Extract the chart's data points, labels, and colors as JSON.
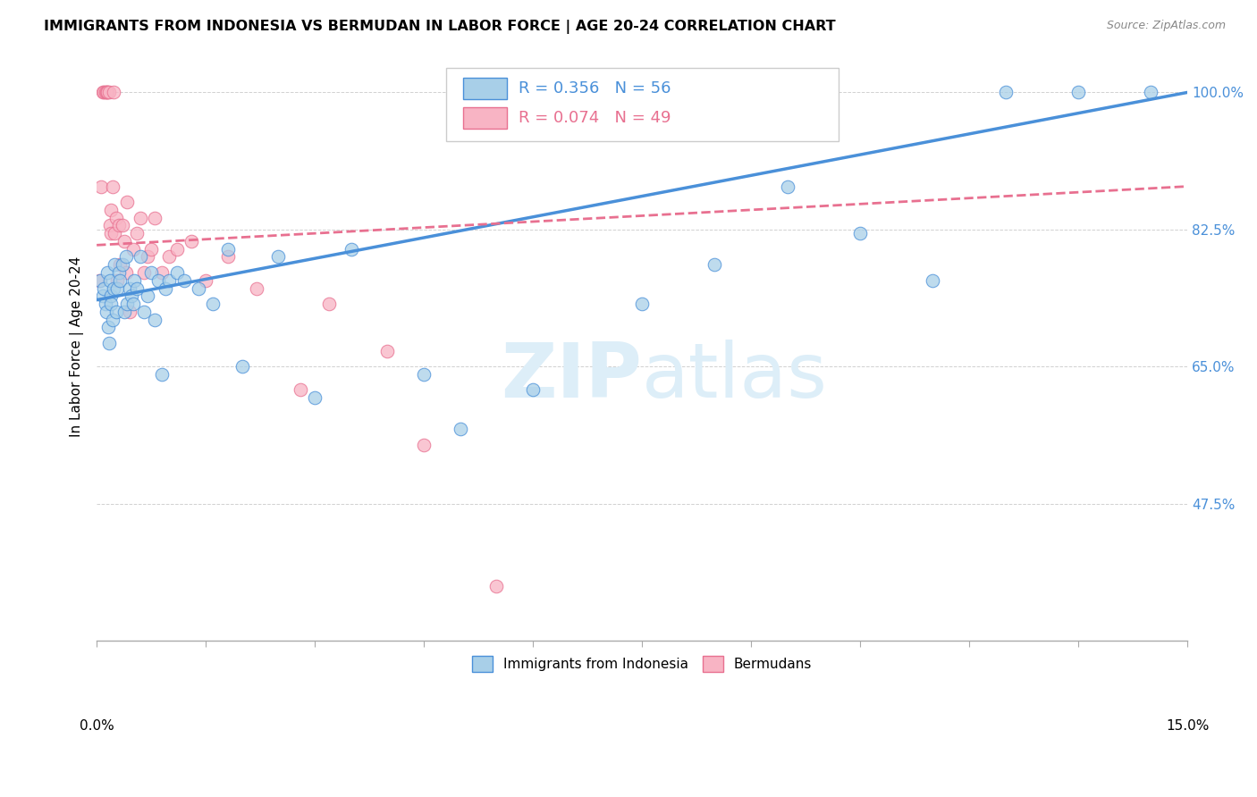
{
  "title": "IMMIGRANTS FROM INDONESIA VS BERMUDAN IN LABOR FORCE | AGE 20-24 CORRELATION CHART",
  "source": "Source: ZipAtlas.com",
  "ylabel": "In Labor Force | Age 20-24",
  "yticks": [
    100.0,
    82.5,
    65.0,
    47.5
  ],
  "ytick_labels": [
    "100.0%",
    "82.5%",
    "65.0%",
    "47.5%"
  ],
  "xmin": 0.0,
  "xmax": 15.0,
  "ymin": 30.0,
  "ymax": 105.0,
  "color_indonesia": "#a8cfe8",
  "color_bermuda": "#f8b4c4",
  "color_line_indonesia": "#4a90d9",
  "color_line_bermuda": "#e87090",
  "watermark_color": "#ddeef8",
  "indonesia_x": [
    0.05,
    0.08,
    0.1,
    0.12,
    0.13,
    0.15,
    0.16,
    0.17,
    0.18,
    0.19,
    0.2,
    0.22,
    0.23,
    0.25,
    0.27,
    0.28,
    0.3,
    0.32,
    0.35,
    0.38,
    0.4,
    0.42,
    0.45,
    0.48,
    0.5,
    0.52,
    0.55,
    0.6,
    0.65,
    0.7,
    0.75,
    0.8,
    0.85,
    0.9,
    0.95,
    1.0,
    1.1,
    1.2,
    1.4,
    1.6,
    1.8,
    2.0,
    2.5,
    3.0,
    3.5,
    4.5,
    5.0,
    6.0,
    7.5,
    8.5,
    9.5,
    10.5,
    11.5,
    12.5,
    13.5,
    14.5
  ],
  "indonesia_y": [
    76,
    74,
    75,
    73,
    72,
    77,
    70,
    68,
    76,
    74,
    73,
    71,
    75,
    78,
    72,
    75,
    77,
    76,
    78,
    72,
    79,
    73,
    75,
    74,
    73,
    76,
    75,
    79,
    72,
    74,
    77,
    71,
    76,
    64,
    75,
    76,
    77,
    76,
    75,
    73,
    80,
    65,
    79,
    61,
    80,
    64,
    57,
    62,
    73,
    78,
    88,
    82,
    76,
    100,
    100,
    100
  ],
  "bermuda_x": [
    0.04,
    0.06,
    0.08,
    0.1,
    0.12,
    0.13,
    0.14,
    0.15,
    0.17,
    0.18,
    0.19,
    0.2,
    0.22,
    0.23,
    0.25,
    0.27,
    0.28,
    0.3,
    0.32,
    0.35,
    0.38,
    0.4,
    0.42,
    0.45,
    0.5,
    0.55,
    0.6,
    0.65,
    0.7,
    0.75,
    0.8,
    0.9,
    1.0,
    1.1,
    1.3,
    1.5,
    1.8,
    2.2,
    2.8,
    3.2,
    4.0,
    4.5,
    5.5
  ],
  "bermuda_y": [
    76,
    88,
    100,
    100,
    100,
    100,
    100,
    100,
    100,
    83,
    85,
    82,
    88,
    100,
    82,
    84,
    76,
    83,
    78,
    83,
    81,
    77,
    86,
    72,
    80,
    82,
    84,
    77,
    79,
    80,
    84,
    77,
    79,
    80,
    81,
    76,
    79,
    75,
    62,
    73,
    67,
    55,
    37
  ],
  "line_indonesia_x0": 0.0,
  "line_indonesia_y0": 73.5,
  "line_indonesia_x1": 15.0,
  "line_indonesia_y1": 100.0,
  "line_bermuda_x0": 0.0,
  "line_bermuda_y0": 80.5,
  "line_bermuda_x1": 15.0,
  "line_bermuda_y1": 88.0
}
